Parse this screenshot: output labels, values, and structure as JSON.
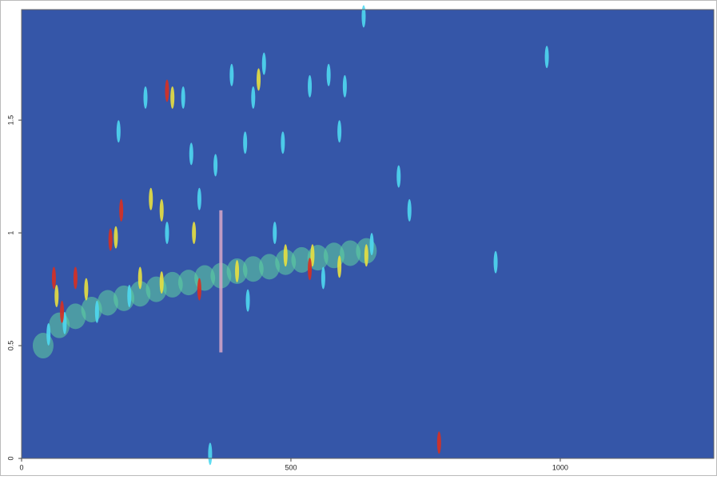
{
  "chart_data": {
    "type": "scatter",
    "background": "#3556a8",
    "xlim": [
      0,
      1285
    ],
    "ylim": [
      0,
      1.99
    ],
    "xticks": [
      0,
      500,
      1000
    ],
    "yticks": [
      0,
      0.5,
      1,
      1.5
    ],
    "series": [
      {
        "color": "#5fd3a0",
        "shape": "blob",
        "x": [
          40,
          70,
          100,
          130,
          160,
          190,
          220,
          250,
          280,
          310,
          340,
          370,
          400,
          430,
          460,
          490,
          520,
          550,
          580,
          610,
          640
        ],
        "y": [
          0.5,
          0.59,
          0.63,
          0.66,
          0.69,
          0.71,
          0.73,
          0.75,
          0.77,
          0.78,
          0.8,
          0.81,
          0.83,
          0.84,
          0.85,
          0.87,
          0.88,
          0.89,
          0.9,
          0.91,
          0.92
        ]
      },
      {
        "color": "#4fd8f0",
        "shape": "streak",
        "x": [
          50,
          80,
          140,
          200,
          230,
          300,
          315,
          360,
          390,
          415,
          430,
          450,
          485,
          535,
          570,
          590,
          600,
          700,
          720,
          880,
          975,
          635,
          350,
          420,
          470,
          560,
          650,
          330,
          270,
          180
        ],
        "y": [
          0.55,
          0.6,
          0.65,
          0.72,
          1.6,
          1.6,
          1.35,
          1.3,
          1.7,
          1.4,
          1.6,
          1.75,
          1.4,
          1.65,
          1.7,
          1.45,
          1.65,
          1.25,
          1.1,
          0.87,
          1.78,
          1.96,
          0.02,
          0.7,
          1.0,
          0.8,
          0.95,
          1.15,
          1.0,
          1.45
        ]
      },
      {
        "color": "#e8e040",
        "shape": "streak",
        "x": [
          65,
          120,
          175,
          240,
          260,
          280,
          320,
          440,
          400,
          490,
          540,
          590,
          640,
          220,
          260
        ],
        "y": [
          0.72,
          0.75,
          0.98,
          1.15,
          1.1,
          1.6,
          1.0,
          1.68,
          0.83,
          0.9,
          0.9,
          0.85,
          0.9,
          0.8,
          0.78
        ]
      },
      {
        "color": "#d83020",
        "shape": "streak",
        "x": [
          60,
          75,
          100,
          165,
          185,
          270,
          330,
          535,
          775
        ],
        "y": [
          0.8,
          0.65,
          0.8,
          0.97,
          1.1,
          1.63,
          0.75,
          0.84,
          0.07
        ]
      },
      {
        "color": "#d8a8c8",
        "shape": "line",
        "x": [
          370,
          370
        ],
        "y": [
          0.47,
          1.1
        ]
      }
    ]
  }
}
